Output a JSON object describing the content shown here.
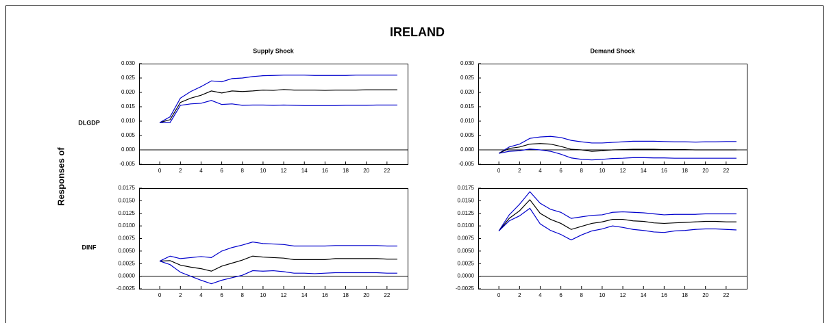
{
  "title": "IRELAND",
  "ylabel": "Responses of",
  "row_labels": [
    "DLGDP",
    "DINF"
  ],
  "chart_data": [
    {
      "type": "line",
      "title": "Supply Shock",
      "zero_line": true,
      "x": [
        0,
        1,
        2,
        3,
        4,
        5,
        6,
        7,
        8,
        9,
        10,
        11,
        12,
        13,
        14,
        15,
        16,
        17,
        18,
        19,
        20,
        21,
        22,
        23
      ],
      "xlim": [
        -2,
        24
      ],
      "xticks": [
        0,
        2,
        4,
        6,
        8,
        10,
        12,
        14,
        16,
        18,
        20,
        22
      ],
      "ylim": [
        -0.005,
        0.03
      ],
      "yticks": [
        {
          "value": -0.005,
          "label": "-0.005"
        },
        {
          "value": 0,
          "label": "0.000"
        },
        {
          "value": 0.005,
          "label": "0.005"
        },
        {
          "value": 0.01,
          "label": "0.010"
        },
        {
          "value": 0.015,
          "label": "0.015"
        },
        {
          "value": 0.02,
          "label": "0.020"
        },
        {
          "value": 0.025,
          "label": "0.025"
        },
        {
          "value": 0.03,
          "label": "0.030"
        }
      ],
      "series": [
        {
          "color": "#0000cc",
          "values": [
            0.0095,
            0.0115,
            0.018,
            0.0203,
            0.022,
            0.024,
            0.0237,
            0.0248,
            0.025,
            0.0255,
            0.0258,
            0.0259,
            0.026,
            0.026,
            0.026,
            0.0259,
            0.0259,
            0.0259,
            0.0259,
            0.026,
            0.026,
            0.026,
            0.026,
            0.026
          ]
        },
        {
          "color": "#000000",
          "values": [
            0.0095,
            0.0105,
            0.0165,
            0.018,
            0.019,
            0.0205,
            0.0198,
            0.0205,
            0.0203,
            0.0205,
            0.0208,
            0.0207,
            0.021,
            0.0208,
            0.0208,
            0.0208,
            0.0207,
            0.0208,
            0.0208,
            0.0208,
            0.0209,
            0.0209,
            0.0209,
            0.0209
          ]
        },
        {
          "color": "#0000cc",
          "values": [
            0.0095,
            0.0095,
            0.0155,
            0.016,
            0.0162,
            0.0172,
            0.0158,
            0.016,
            0.0155,
            0.0156,
            0.0156,
            0.0155,
            0.0156,
            0.0155,
            0.0154,
            0.0154,
            0.0154,
            0.0154,
            0.0155,
            0.0155,
            0.0155,
            0.0156,
            0.0156,
            0.0156
          ]
        }
      ]
    },
    {
      "type": "line",
      "title": "Demand Shock",
      "zero_line": true,
      "x": [
        0,
        1,
        2,
        3,
        4,
        5,
        6,
        7,
        8,
        9,
        10,
        11,
        12,
        13,
        14,
        15,
        16,
        17,
        18,
        19,
        20,
        21,
        22,
        23
      ],
      "xlim": [
        -2,
        24
      ],
      "xticks": [
        0,
        2,
        4,
        6,
        8,
        10,
        12,
        14,
        16,
        18,
        20,
        22
      ],
      "ylim": [
        -0.005,
        0.03
      ],
      "yticks": [
        {
          "value": -0.005,
          "label": "-0.005"
        },
        {
          "value": 0,
          "label": "0.000"
        },
        {
          "value": 0.005,
          "label": "0.005"
        },
        {
          "value": 0.01,
          "label": "0.010"
        },
        {
          "value": 0.015,
          "label": "0.015"
        },
        {
          "value": 0.02,
          "label": "0.020"
        },
        {
          "value": 0.025,
          "label": "0.025"
        },
        {
          "value": 0.03,
          "label": "0.030"
        }
      ],
      "series": [
        {
          "color": "#0000cc",
          "values": [
            -0.0012,
            0.001,
            0.002,
            0.004,
            0.0045,
            0.0047,
            0.0043,
            0.0033,
            0.0028,
            0.0024,
            0.0024,
            0.0026,
            0.0028,
            0.003,
            0.003,
            0.003,
            0.0029,
            0.0028,
            0.0028,
            0.0027,
            0.0028,
            0.0028,
            0.0029,
            0.0029
          ]
        },
        {
          "color": "#000000",
          "values": [
            -0.0012,
            0.0005,
            0.001,
            0.002,
            0.0022,
            0.002,
            0.0012,
            0.0002,
            0,
            -0.0005,
            -0.0003,
            0,
            0.0001,
            0.0002,
            0.0002,
            0.0002,
            0.0001,
            0.0001,
            0.0001,
            0,
            0,
            0,
            0,
            0
          ]
        },
        {
          "color": "#0000cc",
          "values": [
            -0.0012,
            -0.0005,
            -0.0003,
            0.0003,
            0,
            -0.0005,
            -0.0015,
            -0.0028,
            -0.0033,
            -0.0035,
            -0.0033,
            -0.003,
            -0.0029,
            -0.0027,
            -0.0027,
            -0.0028,
            -0.0028,
            -0.0029,
            -0.0029,
            -0.0029,
            -0.0029,
            -0.0029,
            -0.0029,
            -0.0029
          ]
        }
      ]
    },
    {
      "type": "line",
      "zero_line": true,
      "x": [
        0,
        1,
        2,
        3,
        4,
        5,
        6,
        7,
        8,
        9,
        10,
        11,
        12,
        13,
        14,
        15,
        16,
        17,
        18,
        19,
        20,
        21,
        22,
        23
      ],
      "xlim": [
        -2,
        24
      ],
      "xticks": [
        0,
        2,
        4,
        6,
        8,
        10,
        12,
        14,
        16,
        18,
        20,
        22
      ],
      "ylim": [
        -0.0025,
        0.0175
      ],
      "yticks": [
        {
          "value": -0.0025,
          "label": "-0.0025"
        },
        {
          "value": 0,
          "label": "0.0000"
        },
        {
          "value": 0.0025,
          "label": "0.0025"
        },
        {
          "value": 0.005,
          "label": "0.0050"
        },
        {
          "value": 0.0075,
          "label": "0.0075"
        },
        {
          "value": 0.01,
          "label": "0.0100"
        },
        {
          "value": 0.0125,
          "label": "0.0125"
        },
        {
          "value": 0.015,
          "label": "0.0150"
        },
        {
          "value": 0.0175,
          "label": "0.0175"
        }
      ],
      "series": [
        {
          "color": "#0000cc",
          "values": [
            0.003,
            0.004,
            0.0035,
            0.0037,
            0.0039,
            0.0037,
            0.005,
            0.0057,
            0.0062,
            0.0068,
            0.0065,
            0.0064,
            0.0063,
            0.006,
            0.006,
            0.006,
            0.006,
            0.0061,
            0.0061,
            0.0061,
            0.0061,
            0.0061,
            0.006,
            0.006
          ]
        },
        {
          "color": "#000000",
          "values": [
            0.003,
            0.0031,
            0.0022,
            0.0018,
            0.0015,
            0.001,
            0.002,
            0.0026,
            0.0032,
            0.004,
            0.0038,
            0.0037,
            0.0036,
            0.0033,
            0.0033,
            0.0033,
            0.0033,
            0.0035,
            0.0035,
            0.0035,
            0.0035,
            0.0035,
            0.0034,
            0.0034
          ]
        },
        {
          "color": "#0000cc",
          "values": [
            0.003,
            0.0023,
            0.0008,
            0,
            -0.0008,
            -0.0015,
            -0.0008,
            -0.0003,
            0.0002,
            0.0011,
            0.001,
            0.0011,
            0.0009,
            0.0006,
            0.0006,
            0.0005,
            0.0006,
            0.0007,
            0.0007,
            0.0007,
            0.0007,
            0.0007,
            0.0006,
            0.0006
          ]
        }
      ]
    },
    {
      "type": "line",
      "zero_line": true,
      "x": [
        0,
        1,
        2,
        3,
        4,
        5,
        6,
        7,
        8,
        9,
        10,
        11,
        12,
        13,
        14,
        15,
        16,
        17,
        18,
        19,
        20,
        21,
        22,
        23
      ],
      "xlim": [
        -2,
        24
      ],
      "xticks": [
        0,
        2,
        4,
        6,
        8,
        10,
        12,
        14,
        16,
        18,
        20,
        22
      ],
      "ylim": [
        -0.0025,
        0.0175
      ],
      "yticks": [
        {
          "value": -0.0025,
          "label": "-0.0025"
        },
        {
          "value": 0,
          "label": "0.0000"
        },
        {
          "value": 0.0025,
          "label": "0.0025"
        },
        {
          "value": 0.005,
          "label": "0.0050"
        },
        {
          "value": 0.0075,
          "label": "0.0075"
        },
        {
          "value": 0.01,
          "label": "0.0100"
        },
        {
          "value": 0.0125,
          "label": "0.0125"
        },
        {
          "value": 0.015,
          "label": "0.0150"
        },
        {
          "value": 0.0175,
          "label": "0.0175"
        }
      ],
      "series": [
        {
          "color": "#0000cc",
          "values": [
            0.009,
            0.0122,
            0.0143,
            0.0168,
            0.0145,
            0.0133,
            0.0127,
            0.0115,
            0.0118,
            0.0121,
            0.0122,
            0.0127,
            0.0128,
            0.0127,
            0.0126,
            0.0124,
            0.0122,
            0.0123,
            0.0123,
            0.0123,
            0.0124,
            0.0124,
            0.0124,
            0.0124
          ]
        },
        {
          "color": "#000000",
          "values": [
            0.009,
            0.0115,
            0.013,
            0.0152,
            0.0125,
            0.0113,
            0.0105,
            0.0093,
            0.0099,
            0.0105,
            0.0108,
            0.0113,
            0.0113,
            0.011,
            0.0109,
            0.0106,
            0.0105,
            0.0106,
            0.0107,
            0.0108,
            0.0109,
            0.0109,
            0.0108,
            0.0108
          ]
        },
        {
          "color": "#0000cc",
          "values": [
            0.009,
            0.011,
            0.012,
            0.0135,
            0.0104,
            0.0091,
            0.0083,
            0.0072,
            0.0082,
            0.009,
            0.0094,
            0.01,
            0.0097,
            0.0093,
            0.0091,
            0.0088,
            0.0087,
            0.009,
            0.0091,
            0.0093,
            0.0094,
            0.0094,
            0.0093,
            0.0092
          ]
        }
      ]
    }
  ]
}
